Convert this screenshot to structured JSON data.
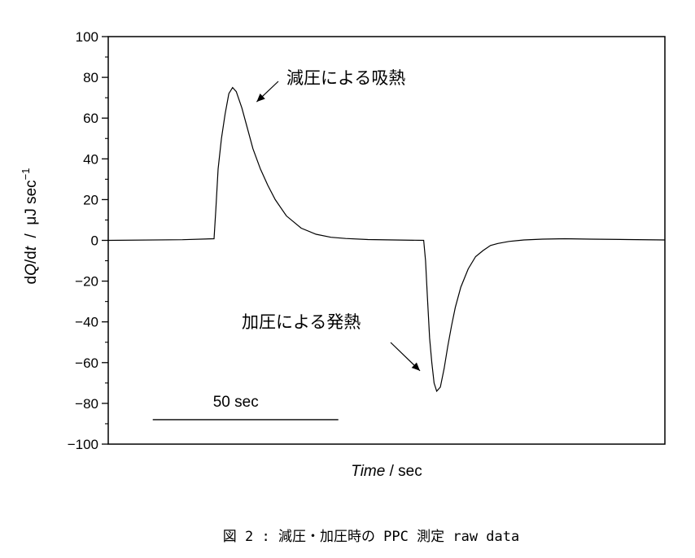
{
  "chart_data": {
    "type": "line",
    "xlabel": "Time / sec",
    "xlabel_parts": {
      "italic": "Time",
      "rest": " / sec"
    },
    "ylabel": "dQ/dt  /  μJ sec⁻¹",
    "ylabel_parts": {
      "prefix": "d",
      "italic_q": "Q",
      "mid": "/d",
      "italic_t": "t",
      "sep": "  /  μJ sec",
      "sup": "−1"
    },
    "ylim": [
      -100,
      100
    ],
    "yticks": [
      100,
      80,
      60,
      40,
      20,
      0,
      -20,
      -40,
      -60,
      -80,
      -100
    ],
    "ytick_labels": [
      "100",
      "80",
      "60",
      "40",
      "20",
      "0",
      "−20",
      "−40",
      "−60",
      "−80",
      "−100"
    ],
    "x_unit_scale_sec": 50,
    "xlim": [
      0,
      150
    ],
    "grid": false,
    "series": [
      {
        "x": [
          0,
          20,
          28.5,
          29,
          29.6,
          30.5,
          31.5,
          32.5,
          33.5,
          34.5,
          36,
          37.5,
          39,
          41,
          43,
          45,
          48,
          52,
          56,
          60,
          64,
          70,
          77,
          85,
          85.5,
          86,
          86.6,
          87.2,
          87.8,
          88.5,
          89.5,
          90.5,
          91.5,
          92.5,
          93.5,
          95,
          97,
          99,
          101,
          103,
          105,
          108,
          112,
          117,
          123,
          130,
          140,
          150
        ],
        "y": [
          0,
          0.3,
          0.8,
          15,
          35,
          50,
          62,
          72,
          75,
          73,
          65,
          55,
          45,
          35,
          27,
          20,
          12,
          6,
          3,
          1.5,
          0.9,
          0.4,
          0.2,
          0,
          -10,
          -28,
          -48,
          -60,
          -70,
          -74,
          -72,
          -63,
          -52,
          -42,
          -33,
          -23,
          -14,
          -8,
          -5,
          -2.5,
          -1.5,
          -0.5,
          0.2,
          0.6,
          0.8,
          0.6,
          0.4,
          0.2
        ]
      }
    ],
    "annotations": [
      {
        "text": "減圧による吸熱",
        "points_to": {
          "x": 40,
          "y": 68
        }
      },
      {
        "text": "加圧による発熱",
        "points_to": {
          "x": 84,
          "y": -64
        }
      }
    ],
    "scale_bar": {
      "label": "50 sec",
      "length_sec": 50,
      "from_x": 12,
      "y": -88
    }
  },
  "caption": "図 2 : 減圧・加圧時の PPC 測定 raw data"
}
